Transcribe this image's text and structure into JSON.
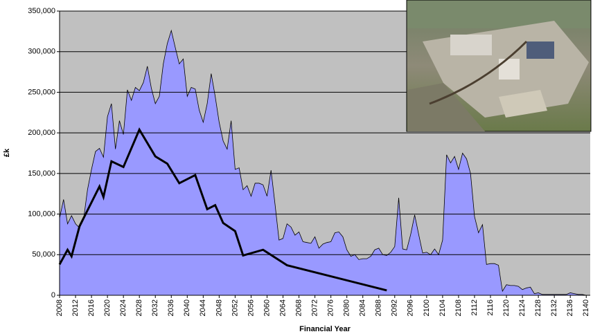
{
  "chart_data": {
    "type": "area",
    "x_label": "Financial Year",
    "y_label": "£k",
    "xlim": [
      2008,
      2141
    ],
    "ylim": [
      0,
      350000
    ],
    "xticks": [
      2008,
      2012,
      2016,
      2020,
      2024,
      2028,
      2032,
      2036,
      2040,
      2044,
      2048,
      2052,
      2056,
      2060,
      2064,
      2068,
      2072,
      2076,
      2080,
      2084,
      2088,
      2092,
      2096,
      2100,
      2104,
      2108,
      2112,
      2116,
      2120,
      2124,
      2128,
      2132,
      2136,
      2140
    ],
    "yticks": [
      0,
      {
        "value": 50000,
        "label": "50,000"
      },
      {
        "value": 100000,
        "label": "100,000"
      },
      {
        "value": 150000,
        "label": "150,000"
      },
      {
        "value": 200000,
        "label": "200,000"
      },
      {
        "value": 250000,
        "label": "250,000"
      },
      {
        "value": 300000,
        "label": "300,000"
      },
      {
        "value": 350000,
        "label": "350,000"
      }
    ],
    "grid": true,
    "background": "#c0c0c0",
    "series": [
      {
        "type": "area",
        "color": "#9999ff",
        "x": [
          2008,
          2009,
          2010,
          2011,
          2012,
          2013,
          2014,
          2015,
          2016,
          2017,
          2018,
          2019,
          2020,
          2021,
          2022,
          2023,
          2024,
          2025,
          2026,
          2027,
          2028,
          2029,
          2030,
          2031,
          2032,
          2033,
          2034,
          2035,
          2036,
          2037,
          2038,
          2039,
          2040,
          2041,
          2042,
          2043,
          2044,
          2045,
          2046,
          2047,
          2048,
          2049,
          2050,
          2051,
          2052,
          2053,
          2054,
          2055,
          2056,
          2057,
          2058,
          2059,
          2060,
          2061,
          2062,
          2063,
          2064,
          2065,
          2066,
          2067,
          2068,
          2069,
          2070,
          2071,
          2072,
          2073,
          2074,
          2075,
          2076,
          2077,
          2078,
          2079,
          2080,
          2081,
          2082,
          2083,
          2084,
          2085,
          2086,
          2087,
          2088,
          2089,
          2090,
          2091,
          2092,
          2093,
          2094,
          2095,
          2096,
          2097,
          2098,
          2099,
          2100,
          2101,
          2102,
          2103,
          2104,
          2105,
          2106,
          2107,
          2108,
          2109,
          2110,
          2111,
          2112,
          2113,
          2114,
          2115,
          2116,
          2117,
          2118,
          2119,
          2120,
          2121,
          2122,
          2123,
          2124,
          2125,
          2126,
          2127,
          2128,
          2129,
          2130,
          2131,
          2132,
          2133,
          2134,
          2135,
          2136,
          2137,
          2138,
          2139,
          2140,
          2141
        ],
        "values": [
          95000,
          118000,
          88000,
          98000,
          88000,
          83000,
          93000,
          130000,
          155000,
          177000,
          181000,
          170000,
          220000,
          236000,
          180000,
          215000,
          198000,
          253000,
          240000,
          256000,
          252000,
          262000,
          282000,
          255000,
          236000,
          245000,
          285000,
          310000,
          326000,
          305000,
          285000,
          291000,
          245000,
          256000,
          254000,
          228000,
          213000,
          236000,
          273000,
          245000,
          213000,
          190000,
          180000,
          215000,
          155000,
          157000,
          130000,
          135000,
          122000,
          138000,
          138000,
          136000,
          122000,
          154000,
          112000,
          68000,
          70000,
          88000,
          84000,
          74000,
          78000,
          66000,
          65000,
          64000,
          72000,
          58000,
          63000,
          65000,
          66000,
          77000,
          78000,
          72000,
          56000,
          48000,
          50000,
          44000,
          45000,
          45000,
          48000,
          56000,
          58000,
          50000,
          49000,
          53000,
          60000,
          120000,
          57000,
          56000,
          75000,
          99000,
          75000,
          52000,
          53000,
          50000,
          57000,
          50000,
          68000,
          173000,
          163000,
          171000,
          155000,
          175000,
          168000,
          150000,
          97000,
          77000,
          87000,
          38000,
          39000,
          39000,
          37000,
          5000,
          13000,
          12000,
          12000,
          11000,
          7000,
          9000,
          10000,
          2000,
          3000,
          1000,
          1000,
          1000,
          1000,
          1000,
          1000,
          1000,
          3000,
          2000,
          1000,
          1000,
          0,
          0
        ]
      },
      {
        "type": "line",
        "color": "#000000",
        "x": [
          2008,
          2010,
          2011,
          2013,
          2018,
          2019,
          2021,
          2024,
          2028,
          2032,
          2035,
          2038,
          2042,
          2045,
          2047,
          2049,
          2052,
          2054,
          2059,
          2065,
          2090
        ],
        "values": [
          38000,
          56000,
          48000,
          85000,
          134000,
          121000,
          165000,
          158000,
          204000,
          171000,
          162000,
          138000,
          148000,
          106000,
          111000,
          89000,
          79000,
          49000,
          56000,
          37000,
          6000
        ]
      }
    ]
  }
}
